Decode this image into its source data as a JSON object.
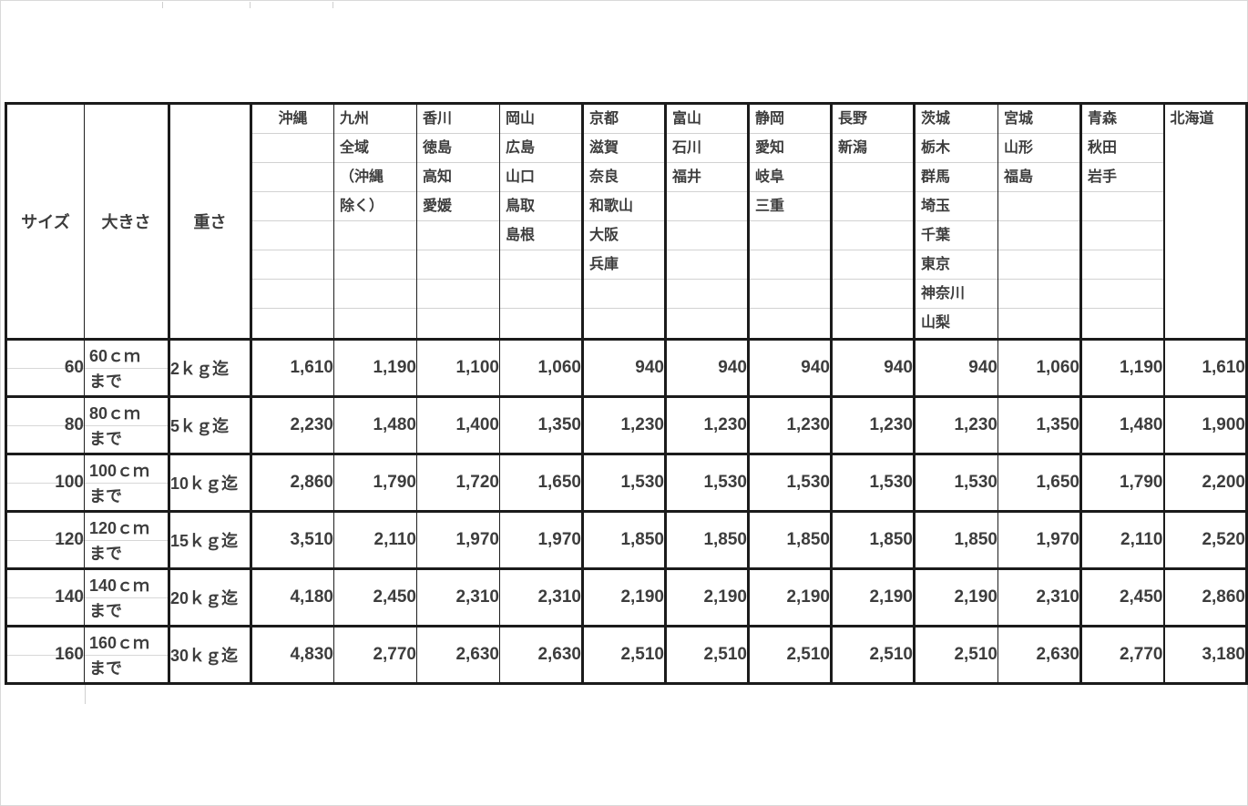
{
  "chart_data": {
    "type": "table",
    "header": {
      "size_label": "サイズ",
      "dimension_label": "大きさ",
      "weight_label": "重さ",
      "region_columns": [
        {
          "lines": [
            "沖縄"
          ],
          "align": "center"
        },
        {
          "lines": [
            "九州",
            "全域",
            "（沖縄",
            "除く）"
          ]
        },
        {
          "lines": [
            "香川",
            "徳島",
            "高知",
            "愛媛"
          ]
        },
        {
          "lines": [
            "岡山",
            "広島",
            "山口",
            "鳥取",
            "島根"
          ]
        },
        {
          "lines": [
            "京都",
            "滋賀",
            "奈良",
            "和歌山",
            "大阪",
            "兵庫"
          ]
        },
        {
          "lines": [
            "富山",
            "石川",
            "福井"
          ]
        },
        {
          "lines": [
            "静岡",
            "愛知",
            "岐阜",
            "三重"
          ]
        },
        {
          "lines": [
            "長野",
            "新潟"
          ]
        },
        {
          "lines": [
            "茨城",
            "栃木",
            "群馬",
            "埼玉",
            "千葉",
            "東京",
            "神奈川",
            "山梨"
          ]
        },
        {
          "lines": [
            "宮城",
            "山形",
            "福島"
          ]
        },
        {
          "lines": [
            "青森",
            "秋田",
            "岩手"
          ]
        },
        {
          "lines": [
            "北海道"
          ],
          "merged": true
        }
      ]
    },
    "rows": [
      {
        "size": "60",
        "dimension": [
          "60ｃｍ",
          "まで"
        ],
        "weight": "2ｋｇ迄",
        "prices": [
          "1,610",
          "1,190",
          "1,100",
          "1,060",
          "940",
          "940",
          "940",
          "940",
          "940",
          "1,060",
          "1,190",
          "1,610"
        ]
      },
      {
        "size": "80",
        "dimension": [
          "80ｃｍ",
          "まで"
        ],
        "weight": "5ｋｇ迄",
        "prices": [
          "2,230",
          "1,480",
          "1,400",
          "1,350",
          "1,230",
          "1,230",
          "1,230",
          "1,230",
          "1,230",
          "1,350",
          "1,480",
          "1,900"
        ]
      },
      {
        "size": "100",
        "dimension": [
          "100ｃｍ",
          "まで"
        ],
        "weight": "10ｋｇ迄",
        "prices": [
          "2,860",
          "1,790",
          "1,720",
          "1,650",
          "1,530",
          "1,530",
          "1,530",
          "1,530",
          "1,530",
          "1,650",
          "1,790",
          "2,200"
        ]
      },
      {
        "size": "120",
        "dimension": [
          "120ｃｍ",
          "まで"
        ],
        "weight": "15ｋｇ迄",
        "prices": [
          "3,510",
          "2,110",
          "1,970",
          "1,970",
          "1,850",
          "1,850",
          "1,850",
          "1,850",
          "1,850",
          "1,970",
          "2,110",
          "2,520"
        ]
      },
      {
        "size": "140",
        "dimension": [
          "140ｃｍ",
          "まで"
        ],
        "weight": "20ｋｇ迄",
        "prices": [
          "4,180",
          "2,450",
          "2,310",
          "2,310",
          "2,190",
          "2,190",
          "2,190",
          "2,190",
          "2,190",
          "2,310",
          "2,450",
          "2,860"
        ]
      },
      {
        "size": "160",
        "dimension": [
          "160ｃｍ",
          "まで"
        ],
        "weight": "30ｋｇ迄",
        "prices": [
          "4,830",
          "2,770",
          "2,630",
          "2,630",
          "2,510",
          "2,510",
          "2,510",
          "2,510",
          "2,510",
          "2,630",
          "2,770",
          "3,180"
        ]
      }
    ]
  }
}
